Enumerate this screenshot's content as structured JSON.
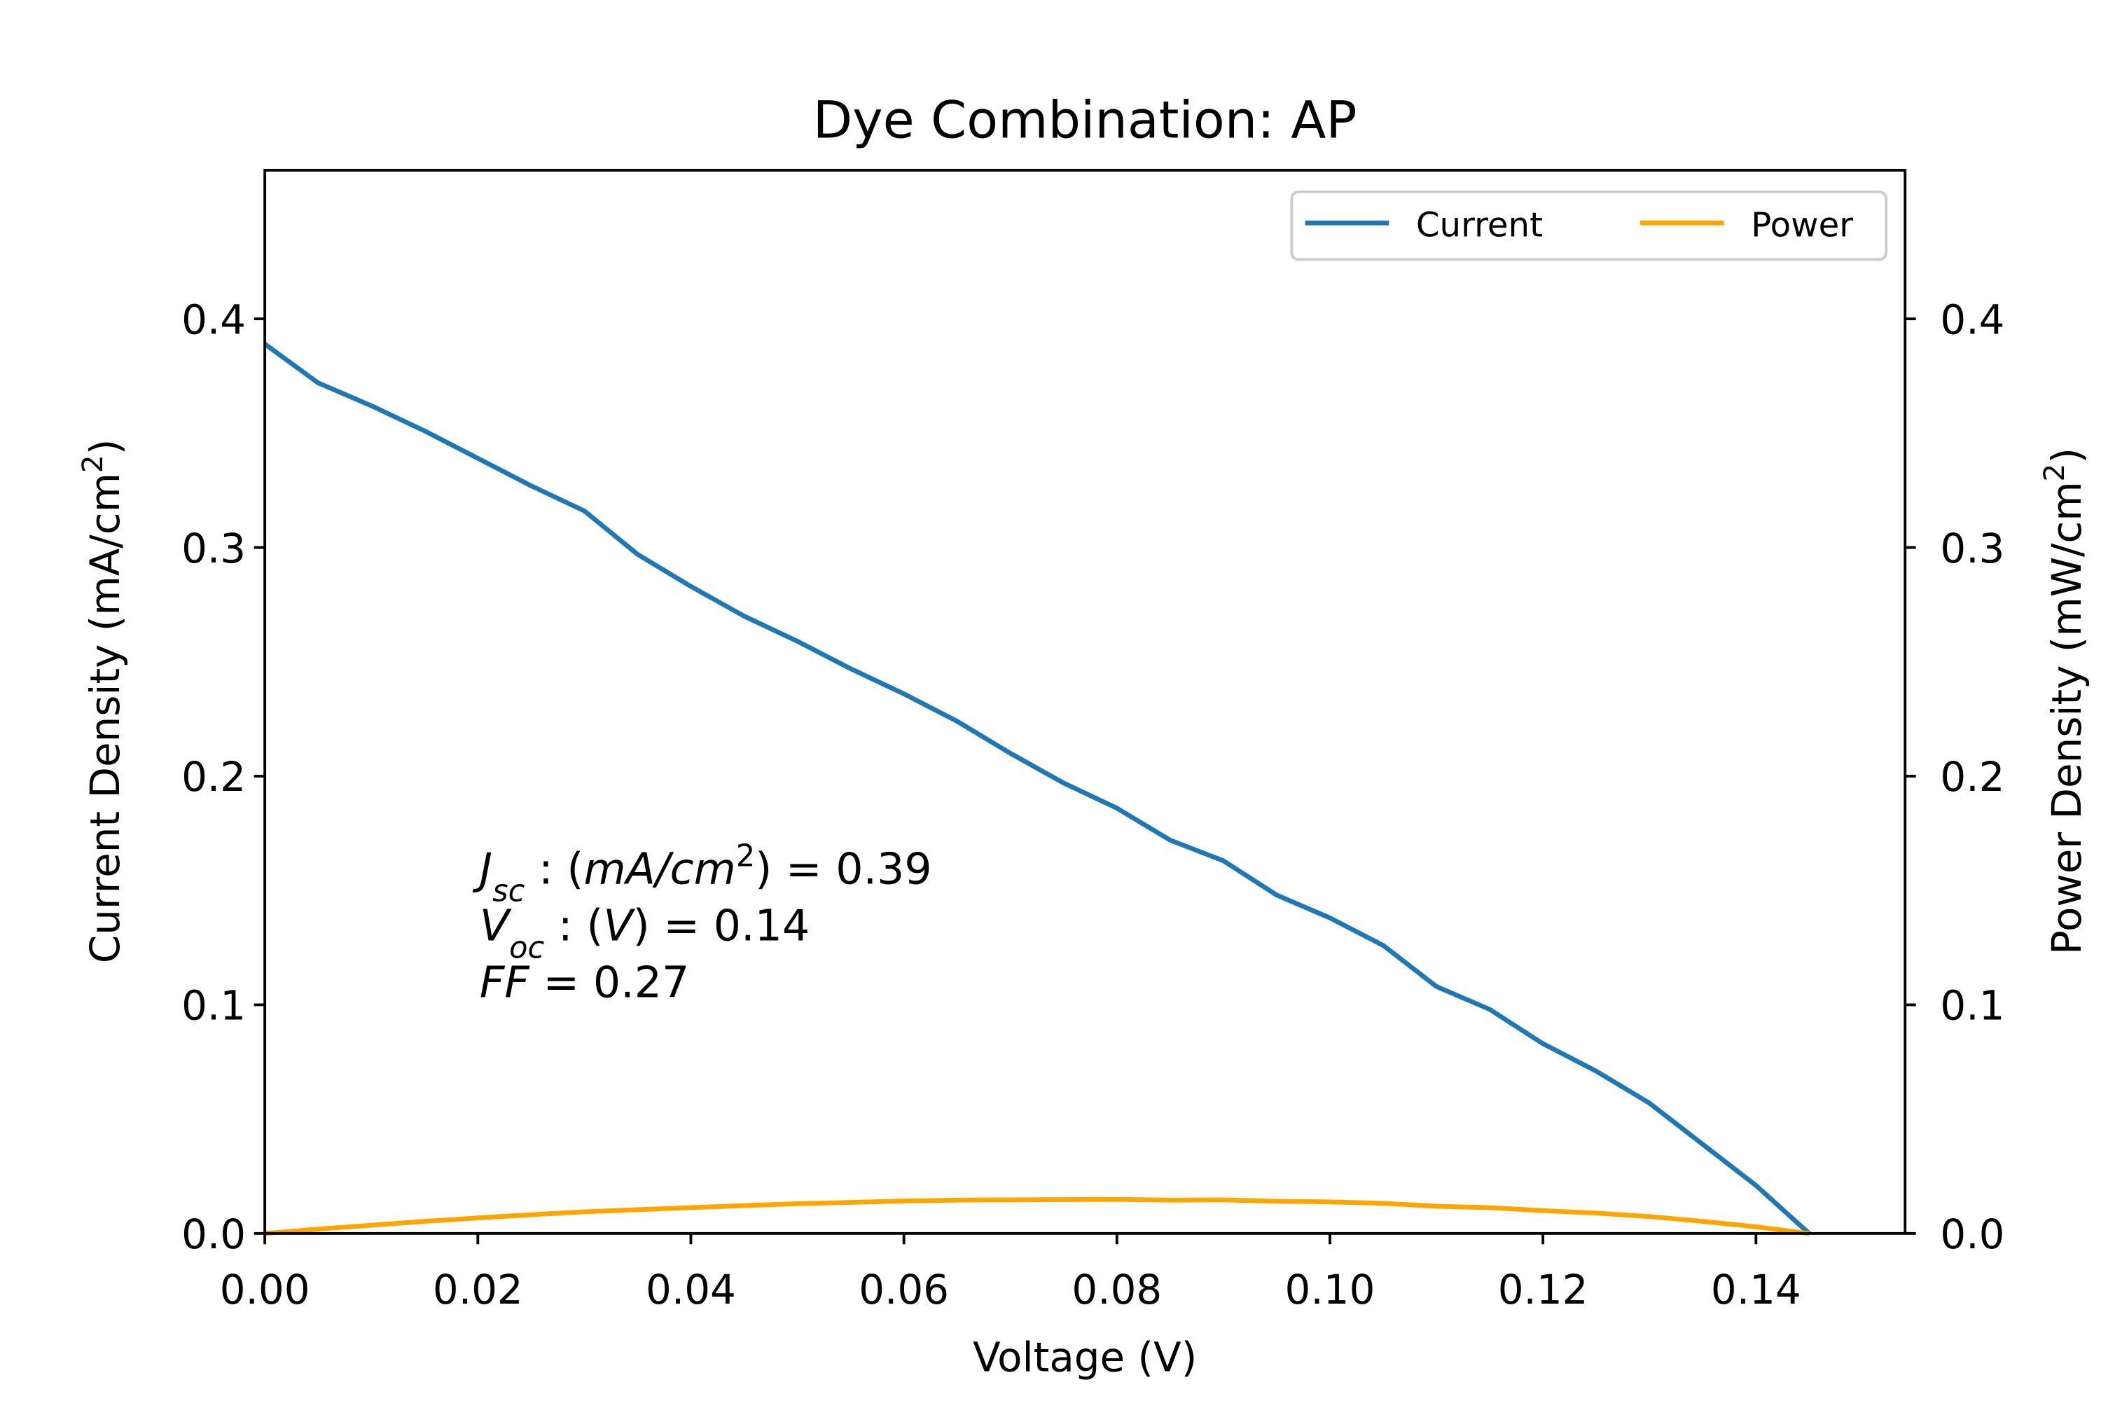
{
  "chart_data": {
    "type": "line",
    "title": "Dye Combination: AP",
    "xlabel": "Voltage (V)",
    "ylabel": [
      {
        "text": "Current Density (mA/cm"
      },
      {
        "text": "2",
        "style": "sup"
      },
      {
        "text": ")"
      }
    ],
    "y2label": [
      {
        "text": "Power Density (mW/cm"
      },
      {
        "text": "2",
        "style": "sup"
      },
      {
        "text": ")"
      }
    ],
    "x": [
      0,
      0.005,
      0.01,
      0.015,
      0.02,
      0.025,
      0.03,
      0.035,
      0.04,
      0.045,
      0.05,
      0.055,
      0.06,
      0.065,
      0.07,
      0.075,
      0.08,
      0.085,
      0.09,
      0.095,
      0.1,
      0.105,
      0.11,
      0.115,
      0.12,
      0.125,
      0.13,
      0.135,
      0.14,
      0.145
    ],
    "series": [
      {
        "name": "Current",
        "color": "#1f77b4",
        "axis": "y",
        "values": [
          0.389,
          0.372,
          0.362,
          0.351,
          0.339,
          0.327,
          0.316,
          0.297,
          0.283,
          0.27,
          0.259,
          0.247,
          0.236,
          0.224,
          0.21,
          0.197,
          0.186,
          0.172,
          0.163,
          0.148,
          0.138,
          0.126,
          0.108,
          0.098,
          0.083,
          0.071,
          0.057,
          0.039,
          0.021,
          0
        ]
      },
      {
        "name": "Power",
        "color": "#ffa500",
        "axis": "y2",
        "values": [
          0,
          0.0019,
          0.0036,
          0.0053,
          0.0068,
          0.0082,
          0.0095,
          0.0104,
          0.0113,
          0.0122,
          0.013,
          0.0136,
          0.0142,
          0.0146,
          0.0147,
          0.0148,
          0.0149,
          0.0146,
          0.0147,
          0.0141,
          0.0138,
          0.0132,
          0.0119,
          0.0113,
          0.01,
          0.0089,
          0.0074,
          0.0053,
          0.0029,
          0
        ]
      }
    ],
    "xlim": [
      0,
      0.154
    ],
    "ylim": [
      0,
      0.465
    ],
    "y2lim": [
      0,
      0.465
    ],
    "xticks": [
      {
        "value": 0,
        "label": "0.00"
      },
      0.02,
      0.04,
      0.06,
      0.08,
      {
        "value": 0.1,
        "label": "0.10"
      },
      0.12,
      0.14
    ],
    "yticks": [
      {
        "value": 0,
        "label": "0.0"
      },
      0.1,
      0.2,
      0.3,
      0.4
    ],
    "y2ticks": [
      {
        "value": 0,
        "label": "0.0"
      },
      0.1,
      0.2,
      0.3,
      0.4
    ],
    "legend": "upper right",
    "annotations": [
      [
        {
          "text": "J",
          "style": "italic"
        },
        {
          "text": "sc",
          "style": "italic sub"
        },
        {
          "text": " : ("
        },
        {
          "text": "mA/cm",
          "style": "italic"
        },
        {
          "text": "2",
          "style": "sup"
        },
        {
          "text": ") = 0.39"
        }
      ],
      [
        {
          "text": "V",
          "style": "italic"
        },
        {
          "text": "oc",
          "style": "italic sub"
        },
        {
          "text": " : ("
        },
        {
          "text": "V",
          "style": "italic"
        },
        {
          "text": ") = 0.14"
        }
      ],
      [
        {
          "text": "FF",
          "style": "italic"
        },
        {
          "text": " = 0.27"
        }
      ]
    ]
  }
}
